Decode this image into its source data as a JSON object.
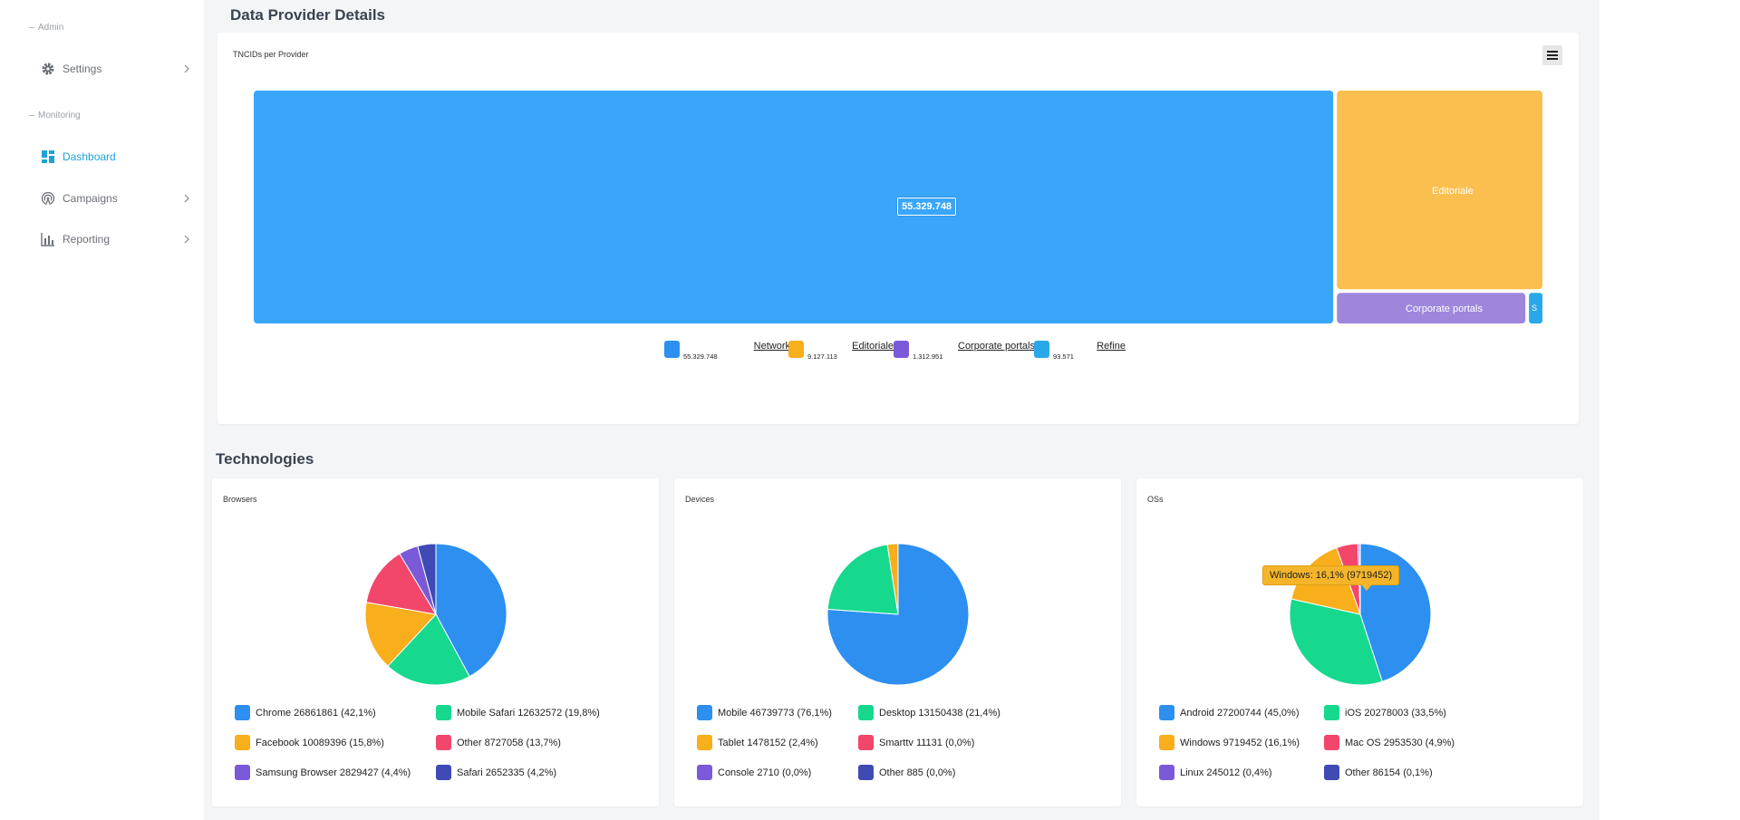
{
  "sidebar": {
    "sections": {
      "admin": "Admin",
      "monitoring": "Monitoring"
    },
    "items": [
      {
        "label": "Settings",
        "icon": "gear-icon"
      },
      {
        "label": "Dashboard",
        "icon": "dashboard-icon",
        "active": true
      },
      {
        "label": "Campaigns",
        "icon": "broadcast-icon"
      },
      {
        "label": "Reporting",
        "icon": "bar-chart-icon"
      }
    ]
  },
  "headers": {
    "data_provider": "Data Provider Details",
    "technologies": "Technologies"
  },
  "cards": {
    "treemap_title": "TNCIDs per Provider",
    "browsers": "Browsers",
    "devices": "Devices",
    "oss": "OSs"
  },
  "colors": {
    "blue": "#3aa6fa",
    "orange": "#fbbf4f",
    "purple": "#9e86dd",
    "light_blue": "#29a8e9",
    "accent": "#1fa2d8"
  },
  "chart_data": [
    {
      "type": "treemap",
      "title": "TNCIDs per Provider",
      "data_label": "55.329.748",
      "tile_labels": [
        "Editoriale",
        "Corporate portals",
        "S"
      ],
      "series": [
        {
          "name": "Network",
          "value_label": "55.329.748",
          "value": 55329748,
          "color": "#3aa6fa"
        },
        {
          "name": "Editoriale",
          "value_label": "9.127.113",
          "value": 9127113,
          "color": "#fbbf4f"
        },
        {
          "name": "Corporate portals",
          "value_label": "1.312.951",
          "value": 1312951,
          "color": "#9e86dd"
        },
        {
          "name": "Refine",
          "value_label": "93.571",
          "value": 93571,
          "color": "#29a8e9"
        }
      ]
    },
    {
      "type": "pie",
      "title": "Browsers",
      "slices": [
        {
          "label": "Chrome",
          "value": 26861861,
          "pct": "42,1%",
          "text": "Chrome  26861861 (42,1%)",
          "color": "#2d8ff0"
        },
        {
          "label": "Mobile Safari",
          "value": 12632572,
          "pct": "19,8%",
          "text": "Mobile Safari  12632572 (19,8%)",
          "color": "#16d98e"
        },
        {
          "label": "Facebook",
          "value": 10089396,
          "pct": "15,8%",
          "text": "Facebook  10089396 (15,8%)",
          "color": "#f9ae1c"
        },
        {
          "label": "Other",
          "value": 8727058,
          "pct": "13,7%",
          "text": "Other  8727058 (13,7%)",
          "color": "#f2466b"
        },
        {
          "label": "Samsung Browser",
          "value": 2829427,
          "pct": "4,4%",
          "text": "Samsung Browser  2829427 (4,4%)",
          "color": "#7a5ad8"
        },
        {
          "label": "Safari",
          "value": 2652335,
          "pct": "4,2%",
          "text": "Safari  2652335 (4,2%)",
          "color": "#3f4ab5"
        }
      ]
    },
    {
      "type": "pie",
      "title": "Devices",
      "slices": [
        {
          "label": "Mobile",
          "value": 46739773,
          "pct": "76,1%",
          "text": "Mobile  46739773 (76,1%)",
          "color": "#2d8ff0"
        },
        {
          "label": "Desktop",
          "value": 13150438,
          "pct": "21,4%",
          "text": "Desktop  13150438 (21,4%)",
          "color": "#16d98e"
        },
        {
          "label": "Tablet",
          "value": 1478152,
          "pct": "2,4%",
          "text": "Tablet  1478152 (2,4%)",
          "color": "#f9ae1c"
        },
        {
          "label": "Smarttv",
          "value": 11131,
          "pct": "0,0%",
          "text": "Smarttv  11131 (0,0%)",
          "color": "#f2466b"
        },
        {
          "label": "Console",
          "value": 2710,
          "pct": "0,0%",
          "text": "Console  2710 (0,0%)",
          "color": "#7a5ad8"
        },
        {
          "label": "Other",
          "value": 885,
          "pct": "0,0%",
          "text": "Other  885 (0,0%)",
          "color": "#3f4ab5"
        }
      ]
    },
    {
      "type": "pie",
      "title": "OSs",
      "tooltip": "Windows: 16,1% (9719452)",
      "slices": [
        {
          "label": "Android",
          "value": 27200744,
          "pct": "45,0%",
          "text": "Android  27200744 (45,0%)",
          "color": "#2d8ff0"
        },
        {
          "label": "iOS",
          "value": 20278003,
          "pct": "33,5%",
          "text": "iOS  20278003 (33,5%)",
          "color": "#16d98e"
        },
        {
          "label": "Windows",
          "value": 9719452,
          "pct": "16,1%",
          "text": "Windows  9719452 (16,1%)",
          "color": "#f9ae1c"
        },
        {
          "label": "Mac OS",
          "value": 2953530,
          "pct": "4,9%",
          "text": "Mac OS  2953530 (4,9%)",
          "color": "#f2466b"
        },
        {
          "label": "Linux",
          "value": 245012,
          "pct": "0,4%",
          "text": "Linux  245012 (0,4%)",
          "color": "#7a5ad8"
        },
        {
          "label": "Other",
          "value": 86154,
          "pct": "0,1%",
          "text": "Other  86154 (0,1%)",
          "color": "#3f4ab5"
        }
      ]
    }
  ]
}
